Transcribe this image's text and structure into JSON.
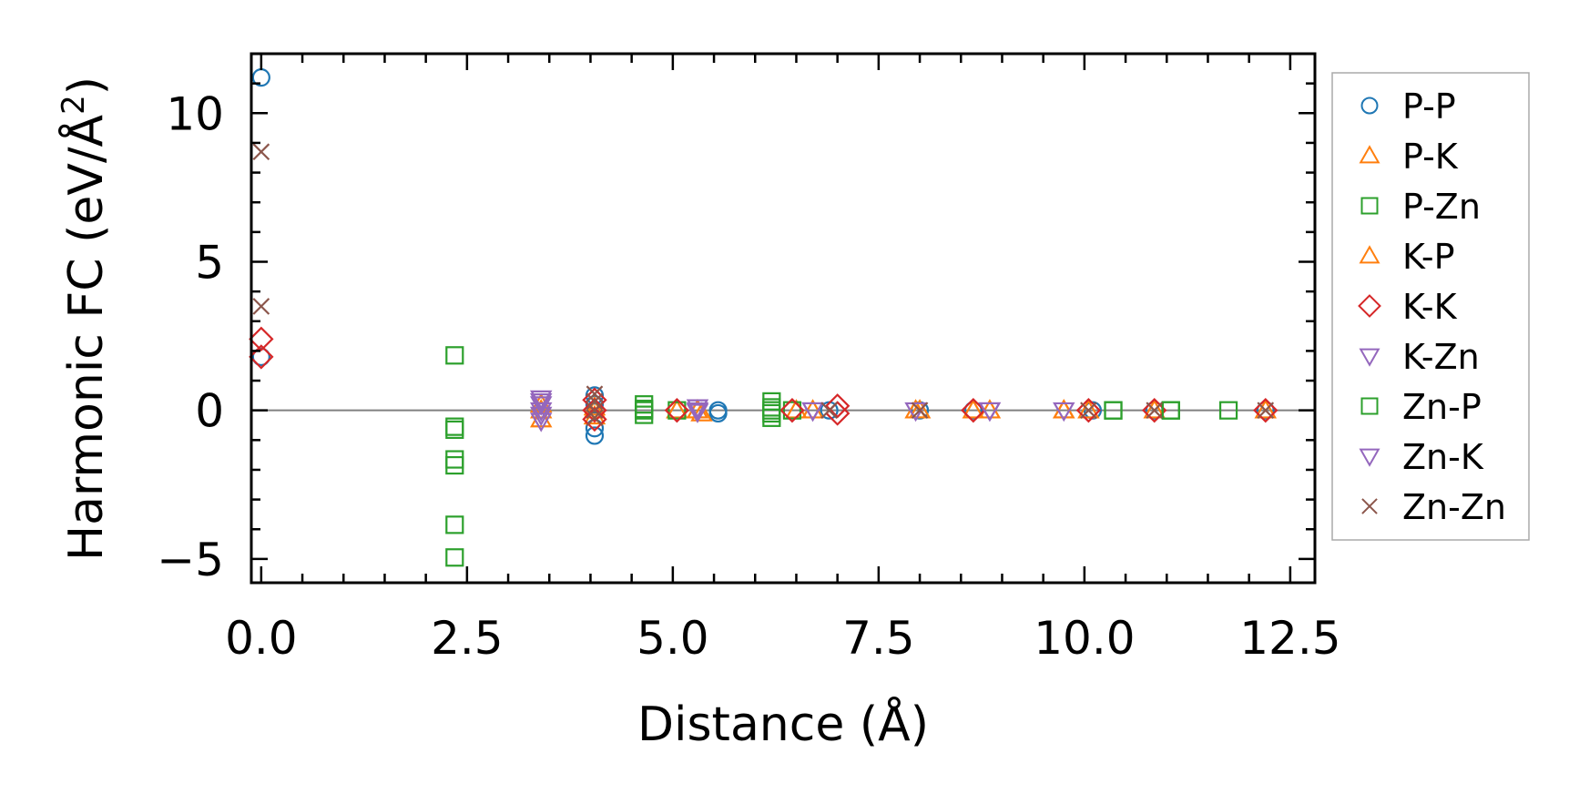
{
  "chart_data": {
    "type": "scatter",
    "xlabel": "Distance (Å)",
    "ylabel_main": "Harmonic FC (eV/Å",
    "ylabel_sup": "2",
    "ylabel_end": ")",
    "xlim": [
      -0.12,
      12.8
    ],
    "ylim": [
      -5.8,
      12.0
    ],
    "xticks": [
      0,
      2.5,
      5,
      7.5,
      10,
      12.5
    ],
    "xtick_labels": [
      "0.0",
      "2.5",
      "5.0",
      "7.5",
      "10.0",
      "12.5"
    ],
    "yticks": [
      -5,
      0,
      5,
      10
    ],
    "ytick_labels": [
      "−5",
      "0",
      "5",
      "10"
    ],
    "zero_line": true,
    "legend_position": "right-outside",
    "series": [
      {
        "name": "P-P",
        "marker": "circle",
        "color": "#1f77b4",
        "points": [
          [
            0,
            11.2
          ],
          [
            0,
            1.8
          ],
          [
            4.05,
            -0.85
          ],
          [
            4.05,
            -0.6
          ],
          [
            4.05,
            0.5
          ],
          [
            4.05,
            0.2
          ],
          [
            5.55,
            0.0
          ],
          [
            5.55,
            -0.1
          ],
          [
            6.9,
            0.0
          ],
          [
            8.0,
            0.0
          ],
          [
            8.65,
            0.0
          ],
          [
            10.1,
            0.0
          ],
          [
            10.85,
            0.0
          ],
          [
            12.2,
            0.0
          ]
        ]
      },
      {
        "name": "P-K",
        "marker": "triangle-up",
        "color": "#ff7f0e",
        "points": [
          [
            3.4,
            -0.3
          ],
          [
            3.4,
            0.0
          ],
          [
            4.05,
            -0.2
          ],
          [
            4.05,
            0.1
          ],
          [
            5.05,
            0.0
          ],
          [
            5.3,
            0.0
          ],
          [
            5.35,
            -0.1
          ],
          [
            6.5,
            0.0
          ],
          [
            6.7,
            0.0
          ],
          [
            7.95,
            0.0
          ],
          [
            8.65,
            0.0
          ],
          [
            8.85,
            0.0
          ],
          [
            9.75,
            0.0
          ],
          [
            10.05,
            0.0
          ],
          [
            10.85,
            0.0
          ],
          [
            12.2,
            0.0
          ]
        ]
      },
      {
        "name": "P-Zn",
        "marker": "square",
        "color": "#2ca02c",
        "points": [
          [
            2.35,
            1.85
          ],
          [
            2.35,
            -0.55
          ],
          [
            2.35,
            -0.65
          ],
          [
            2.35,
            -1.65
          ],
          [
            2.35,
            -1.85
          ],
          [
            2.35,
            -3.85
          ],
          [
            2.35,
            -4.95
          ],
          [
            4.65,
            0.2
          ],
          [
            4.65,
            0.0
          ],
          [
            4.65,
            -0.15
          ],
          [
            5.05,
            0.0
          ],
          [
            6.2,
            0.3
          ],
          [
            6.2,
            0.1
          ],
          [
            6.2,
            -0.1
          ],
          [
            6.2,
            -0.25
          ],
          [
            6.45,
            0.0
          ],
          [
            10.35,
            0.0
          ],
          [
            11.05,
            0.0
          ],
          [
            11.75,
            0.0
          ]
        ]
      },
      {
        "name": "K-P",
        "marker": "triangle-up",
        "color": "#ff7f0e",
        "points": [
          [
            3.4,
            0.2
          ],
          [
            4.05,
            0.0
          ],
          [
            5.3,
            0.0
          ],
          [
            8.0,
            0.0
          ],
          [
            9.75,
            0.0
          ]
        ]
      },
      {
        "name": "K-K",
        "marker": "diamond",
        "color": "#d62728",
        "points": [
          [
            0,
            2.4
          ],
          [
            0,
            1.8
          ],
          [
            4.05,
            0.35
          ],
          [
            4.05,
            0.0
          ],
          [
            4.05,
            -0.3
          ],
          [
            5.05,
            0.0
          ],
          [
            6.45,
            0.0
          ],
          [
            7.0,
            0.15
          ],
          [
            7.0,
            -0.1
          ],
          [
            8.65,
            0.0
          ],
          [
            10.05,
            0.0
          ],
          [
            10.85,
            0.0
          ],
          [
            12.2,
            0.0
          ]
        ]
      },
      {
        "name": "K-Zn",
        "marker": "triangle-down",
        "color": "#9467bd",
        "points": [
          [
            3.4,
            0.4
          ],
          [
            3.4,
            0.2
          ],
          [
            3.4,
            0.0
          ],
          [
            3.4,
            -0.15
          ],
          [
            3.4,
            -0.35
          ],
          [
            5.3,
            0.1
          ],
          [
            5.3,
            -0.05
          ],
          [
            6.7,
            0.0
          ],
          [
            7.95,
            0.0
          ],
          [
            8.85,
            0.0
          ],
          [
            9.75,
            0.0
          ]
        ]
      },
      {
        "name": "Zn-P",
        "marker": "square",
        "color": "#2ca02c",
        "points": [
          [
            4.65,
            0.05
          ],
          [
            6.2,
            0.0
          ],
          [
            10.35,
            0.0
          ],
          [
            11.05,
            0.0
          ]
        ]
      },
      {
        "name": "Zn-K",
        "marker": "triangle-down",
        "color": "#9467bd",
        "points": [
          [
            3.4,
            0.3
          ],
          [
            5.3,
            0.0
          ],
          [
            6.7,
            0.0
          ],
          [
            8.85,
            0.0
          ]
        ]
      },
      {
        "name": "Zn-Zn",
        "marker": "x",
        "color": "#8c564b",
        "points": [
          [
            0,
            8.7
          ],
          [
            0,
            3.5
          ],
          [
            4.05,
            0.55
          ],
          [
            4.05,
            0.3
          ],
          [
            4.05,
            0.0
          ],
          [
            4.05,
            -0.25
          ],
          [
            6.9,
            0.0
          ],
          [
            8.0,
            0.0
          ],
          [
            10.05,
            0.0
          ],
          [
            10.85,
            0.0
          ],
          [
            12.2,
            0.0
          ]
        ]
      }
    ]
  }
}
